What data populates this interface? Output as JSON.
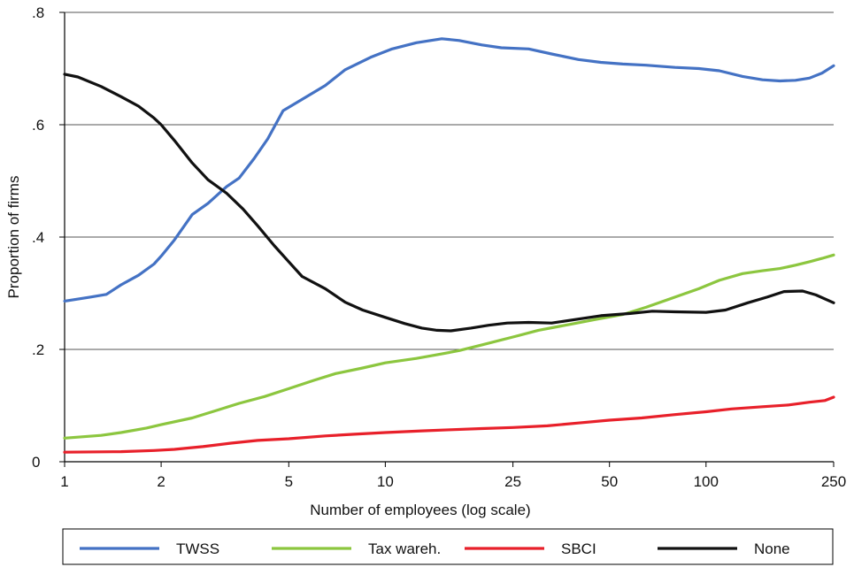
{
  "chart_data": {
    "type": "line",
    "xlabel": "Number of employees (log scale)",
    "ylabel": "Proportion of firms",
    "x_scale": "log",
    "xlim": [
      1,
      250
    ],
    "ylim": [
      0,
      0.8
    ],
    "x_ticks": [
      {
        "value": 1,
        "label": "1"
      },
      {
        "value": 2,
        "label": "2"
      },
      {
        "value": 5,
        "label": "5"
      },
      {
        "value": 10,
        "label": "10"
      },
      {
        "value": 25,
        "label": "25"
      },
      {
        "value": 50,
        "label": "50"
      },
      {
        "value": 100,
        "label": "100"
      },
      {
        "value": 250,
        "label": "250"
      }
    ],
    "y_ticks": [
      {
        "value": 0,
        "label": "0"
      },
      {
        "value": 0.2,
        "label": ".2"
      },
      {
        "value": 0.4,
        "label": ".4"
      },
      {
        "value": 0.6,
        "label": ".6"
      },
      {
        "value": 0.8,
        "label": ".8"
      }
    ],
    "grid": "horizontal",
    "legend_position": "bottom",
    "series": [
      {
        "name": "TWSS",
        "color": "#4472C4",
        "points": [
          [
            1,
            0.286
          ],
          [
            1.2,
            0.293
          ],
          [
            1.35,
            0.298
          ],
          [
            1.5,
            0.315
          ],
          [
            1.7,
            0.332
          ],
          [
            1.9,
            0.352
          ],
          [
            2.0,
            0.366
          ],
          [
            2.2,
            0.395
          ],
          [
            2.5,
            0.44
          ],
          [
            2.8,
            0.46
          ],
          [
            3.2,
            0.49
          ],
          [
            3.5,
            0.505
          ],
          [
            3.9,
            0.54
          ],
          [
            4.3,
            0.575
          ],
          [
            4.8,
            0.625
          ],
          [
            5.5,
            0.645
          ],
          [
            6.5,
            0.67
          ],
          [
            7.5,
            0.698
          ],
          [
            9,
            0.72
          ],
          [
            10.5,
            0.735
          ],
          [
            12.5,
            0.746
          ],
          [
            15,
            0.753
          ],
          [
            17,
            0.75
          ],
          [
            20,
            0.742
          ],
          [
            23,
            0.737
          ],
          [
            28,
            0.735
          ],
          [
            33,
            0.726
          ],
          [
            40,
            0.716
          ],
          [
            47,
            0.711
          ],
          [
            55,
            0.708
          ],
          [
            65,
            0.706
          ],
          [
            80,
            0.702
          ],
          [
            95,
            0.7
          ],
          [
            110,
            0.696
          ],
          [
            130,
            0.686
          ],
          [
            150,
            0.68
          ],
          [
            170,
            0.678
          ],
          [
            190,
            0.679
          ],
          [
            210,
            0.683
          ],
          [
            230,
            0.692
          ],
          [
            250,
            0.705
          ]
        ]
      },
      {
        "name": "Tax wareh.",
        "color": "#8CC63F",
        "points": [
          [
            1,
            0.042
          ],
          [
            1.3,
            0.047
          ],
          [
            1.5,
            0.052
          ],
          [
            1.8,
            0.06
          ],
          [
            2.0,
            0.066
          ],
          [
            2.5,
            0.078
          ],
          [
            3.0,
            0.092
          ],
          [
            3.5,
            0.104
          ],
          [
            4.2,
            0.116
          ],
          [
            5.0,
            0.13
          ],
          [
            6.0,
            0.145
          ],
          [
            7.0,
            0.157
          ],
          [
            8.5,
            0.167
          ],
          [
            10,
            0.176
          ],
          [
            12.5,
            0.184
          ],
          [
            15,
            0.192
          ],
          [
            17,
            0.198
          ],
          [
            20,
            0.208
          ],
          [
            25,
            0.222
          ],
          [
            30,
            0.234
          ],
          [
            38,
            0.245
          ],
          [
            45,
            0.253
          ],
          [
            55,
            0.262
          ],
          [
            65,
            0.275
          ],
          [
            80,
            0.293
          ],
          [
            95,
            0.308
          ],
          [
            110,
            0.323
          ],
          [
            130,
            0.335
          ],
          [
            150,
            0.34
          ],
          [
            170,
            0.344
          ],
          [
            190,
            0.35
          ],
          [
            210,
            0.356
          ],
          [
            230,
            0.362
          ],
          [
            250,
            0.368
          ]
        ]
      },
      {
        "name": "SBCI",
        "color": "#E8202A",
        "points": [
          [
            1,
            0.017
          ],
          [
            1.5,
            0.018
          ],
          [
            1.9,
            0.02
          ],
          [
            2.2,
            0.022
          ],
          [
            2.7,
            0.027
          ],
          [
            3.3,
            0.033
          ],
          [
            4.0,
            0.038
          ],
          [
            5.0,
            0.041
          ],
          [
            6.5,
            0.046
          ],
          [
            8,
            0.049
          ],
          [
            10,
            0.052
          ],
          [
            13,
            0.055
          ],
          [
            16,
            0.057
          ],
          [
            20,
            0.059
          ],
          [
            25,
            0.061
          ],
          [
            32,
            0.064
          ],
          [
            40,
            0.069
          ],
          [
            50,
            0.074
          ],
          [
            63,
            0.078
          ],
          [
            80,
            0.084
          ],
          [
            100,
            0.089
          ],
          [
            120,
            0.094
          ],
          [
            150,
            0.098
          ],
          [
            180,
            0.101
          ],
          [
            210,
            0.106
          ],
          [
            235,
            0.109
          ],
          [
            250,
            0.115
          ]
        ]
      },
      {
        "name": "None",
        "color": "#111111",
        "points": [
          [
            1,
            0.69
          ],
          [
            1.1,
            0.685
          ],
          [
            1.3,
            0.668
          ],
          [
            1.5,
            0.65
          ],
          [
            1.7,
            0.633
          ],
          [
            1.9,
            0.612
          ],
          [
            2.0,
            0.6
          ],
          [
            2.2,
            0.572
          ],
          [
            2.5,
            0.532
          ],
          [
            2.8,
            0.502
          ],
          [
            3.2,
            0.478
          ],
          [
            3.6,
            0.45
          ],
          [
            4.0,
            0.42
          ],
          [
            4.5,
            0.385
          ],
          [
            5.0,
            0.356
          ],
          [
            5.5,
            0.33
          ],
          [
            6.5,
            0.308
          ],
          [
            7.5,
            0.284
          ],
          [
            8.5,
            0.27
          ],
          [
            10,
            0.257
          ],
          [
            11.5,
            0.246
          ],
          [
            13,
            0.238
          ],
          [
            14.5,
            0.234
          ],
          [
            16,
            0.233
          ],
          [
            18.5,
            0.238
          ],
          [
            21,
            0.243
          ],
          [
            24,
            0.247
          ],
          [
            28,
            0.248
          ],
          [
            33,
            0.247
          ],
          [
            40,
            0.254
          ],
          [
            47,
            0.26
          ],
          [
            58,
            0.264
          ],
          [
            68,
            0.268
          ],
          [
            80,
            0.267
          ],
          [
            100,
            0.266
          ],
          [
            115,
            0.27
          ],
          [
            135,
            0.283
          ],
          [
            155,
            0.293
          ],
          [
            175,
            0.303
          ],
          [
            200,
            0.304
          ],
          [
            220,
            0.297
          ],
          [
            250,
            0.283
          ]
        ]
      }
    ]
  }
}
